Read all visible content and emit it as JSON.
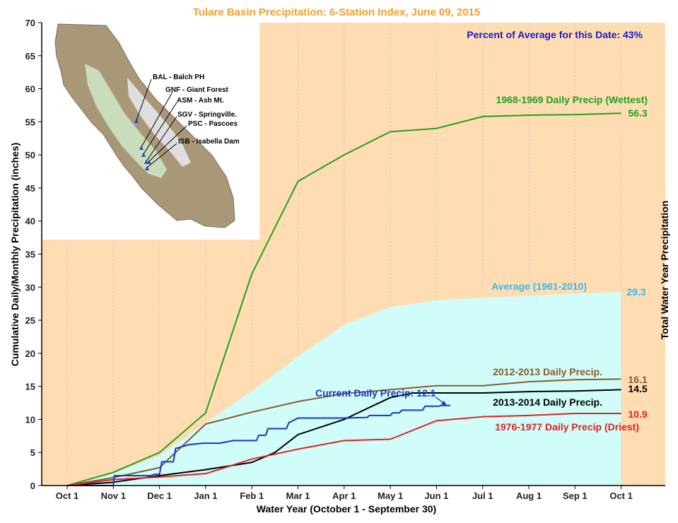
{
  "chart_data": {
    "type": "line",
    "title": "Tulare Basin Precipitation: 6-Station Index, June 09, 2015",
    "xlabel": "Water Year (October 1 - September 30)",
    "ylabel": "Cumulative Daily/Monthly Precipitation (inches)",
    "ylabel_right": "Total Water Year Precipitation",
    "ylim": [
      0,
      70
    ],
    "yticks": [
      "0",
      "5",
      "10",
      "15",
      "20",
      "25",
      "30",
      "35",
      "40",
      "45",
      "50",
      "55",
      "60",
      "65",
      "70"
    ],
    "x_ticks": [
      "Oct 1",
      "Nov 1",
      "Dec 1",
      "Jan 1",
      "Feb 1",
      "Mar 1",
      "Apr 1",
      "May 1",
      "Jun 1",
      "Jul 1",
      "Aug 1",
      "Sep 1",
      "Oct 1"
    ],
    "percent_note": "Percent of Average for this Date: 43%",
    "map_labels": [
      "BAL - Balch PH",
      "GNF - Giant Forest",
      "ASM - Ash Mt.",
      "SGV - Springville.",
      "PSC - Pascoes",
      "ISB - Isabella Dam"
    ],
    "average": {
      "name": "Average (1961-2010)",
      "color": "#ccffff",
      "label_color": "#33bbee",
      "total": "29.3",
      "x": [
        0,
        1,
        2,
        3,
        4,
        5,
        6,
        7,
        8,
        9,
        10,
        11,
        12
      ],
      "values": [
        0,
        1.8,
        4.5,
        9.5,
        14.3,
        19.5,
        24.3,
        27,
        28,
        28.4,
        28.7,
        29,
        29.3
      ]
    },
    "series": [
      {
        "name": "1968-1969 Daily Precip (Wettest)",
        "color": "#22a022",
        "total": "56.3",
        "x": [
          0,
          1,
          2,
          3,
          4,
          5,
          6,
          7,
          8,
          9,
          10,
          11,
          12
        ],
        "values": [
          0,
          2,
          5,
          11,
          32,
          46,
          50,
          53.5,
          54,
          55.8,
          56,
          56.1,
          56.3
        ]
      },
      {
        "name": "2012-2013 Daily Precip.",
        "color": "#8b5a2b",
        "total": "16.1",
        "x": [
          0,
          1,
          2,
          3,
          4,
          5,
          6,
          7,
          8,
          9,
          10,
          11,
          12
        ],
        "values": [
          0,
          1.2,
          2.7,
          9.3,
          11.1,
          12.7,
          13.9,
          14.5,
          15.1,
          15.1,
          15.7,
          16.0,
          16.1
        ]
      },
      {
        "name": "2013-2014 Daily Precip.",
        "color": "#000000",
        "total": "14.5",
        "x": [
          0,
          1,
          2,
          3,
          4,
          4.5,
          5,
          6,
          7,
          7.5,
          8,
          9,
          10,
          11,
          12
        ],
        "values": [
          0,
          0.5,
          1.5,
          2.4,
          3.5,
          5.0,
          7.7,
          10,
          13.3,
          14,
          14,
          14,
          14.2,
          14.3,
          14.5
        ]
      },
      {
        "name": "1976-1977 Daily Precip (Driest)",
        "color": "#e02020",
        "total": "10.9",
        "x": [
          0,
          1,
          2,
          3,
          4,
          5,
          6,
          7,
          8,
          9,
          10,
          11,
          12
        ],
        "values": [
          0,
          0.9,
          1.3,
          1.8,
          4,
          5.5,
          6.8,
          7,
          9.8,
          10.4,
          10.6,
          10.9,
          10.9
        ]
      },
      {
        "name": "Current Daily Precip: 12.1",
        "color": "#1a35c8",
        "stepped": true,
        "x": [
          0,
          1,
          1.02,
          1.5,
          1.8,
          1.9,
          2.0,
          2.05,
          2.3,
          2.35,
          2.65,
          2.95,
          3.3,
          3.6,
          4.1,
          4.15,
          4.3,
          4.35,
          4.75,
          4.8,
          5.0,
          6.0,
          6.5,
          6.55,
          7.0,
          7.05,
          7.2,
          7.25,
          7.7,
          7.75,
          8.05,
          8.1,
          8.3
        ],
        "values": [
          0,
          0,
          1.5,
          1.5,
          1.5,
          1.7,
          1.7,
          3.6,
          3.6,
          5.6,
          6.2,
          6.4,
          6.4,
          6.8,
          6.8,
          7.6,
          7.6,
          8.6,
          8.6,
          9.5,
          10.2,
          10.2,
          10.3,
          10.6,
          10.6,
          11.0,
          11.0,
          11.4,
          11.4,
          12.0,
          12.0,
          12.1,
          12.1
        ]
      }
    ]
  }
}
